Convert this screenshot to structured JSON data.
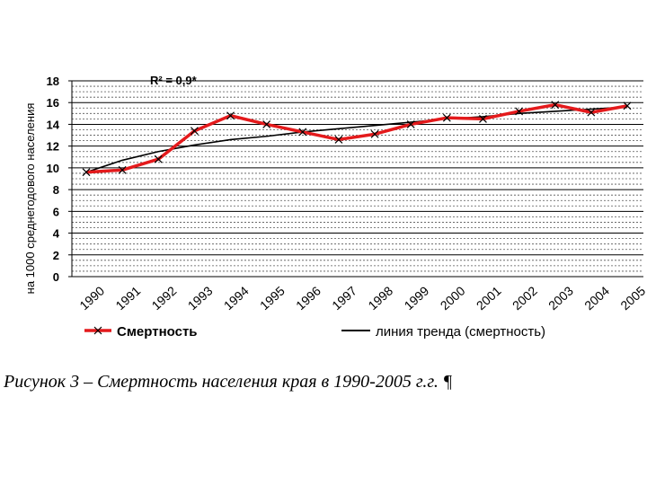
{
  "chart_data": {
    "type": "line",
    "ylabel": "на 1000 среднегодового населения",
    "ylim": [
      0,
      18
    ],
    "yticks": [
      "0",
      "2",
      "4",
      "6",
      "8",
      "10",
      "12",
      "14",
      "16",
      "18"
    ],
    "categories": [
      "1990",
      "1991",
      "1992",
      "1993",
      "1994",
      "1995",
      "1996",
      "1997",
      "1998",
      "1999",
      "2000",
      "2001",
      "2002",
      "2003",
      "2004",
      "2005"
    ],
    "series": [
      {
        "name": "Смертность",
        "color": "#e41a1c",
        "marker": "x",
        "values": [
          9.6,
          9.8,
          10.8,
          13.4,
          14.8,
          14.0,
          13.3,
          12.6,
          13.1,
          14.0,
          14.6,
          14.5,
          15.2,
          15.8,
          15.1,
          15.7
        ]
      },
      {
        "name": "линия тренда (смертность)",
        "color": "#000000",
        "values": [
          9.6,
          10.7,
          11.5,
          12.1,
          12.6,
          12.9,
          13.3,
          13.6,
          13.9,
          14.2,
          14.5,
          14.7,
          15.0,
          15.2,
          15.4,
          15.6
        ]
      }
    ],
    "annotation": "R² = 0,9*",
    "legend": "bottom",
    "grid": true
  },
  "caption": "Рисунок 3 – Смертность населения края в 1990-2005 г.г. ¶",
  "colors": {
    "mortality": "#e41a1c",
    "trend": "#000000"
  }
}
